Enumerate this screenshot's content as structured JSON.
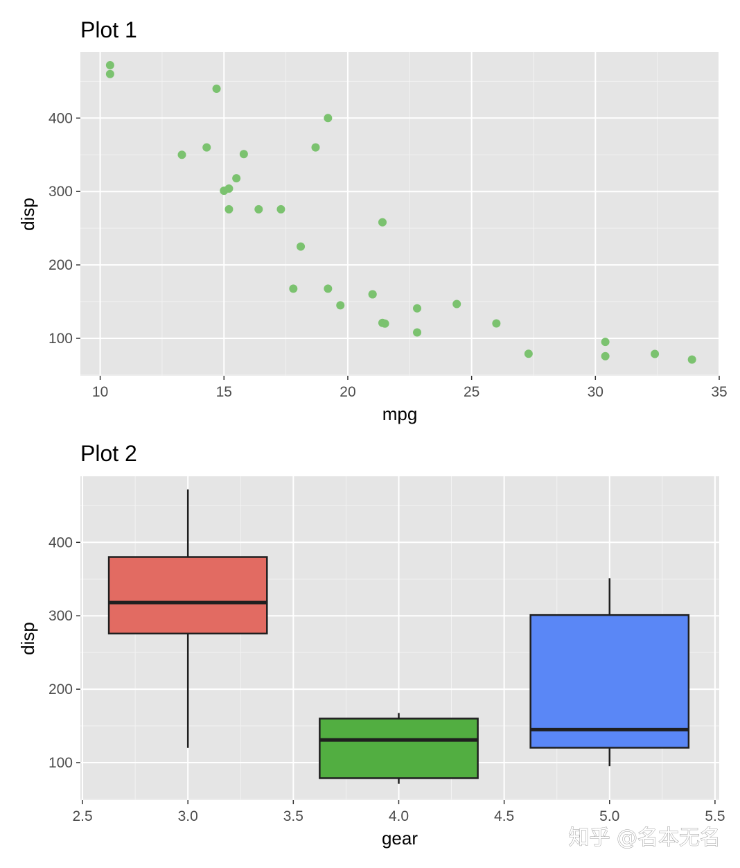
{
  "watermark": "知乎 @名本无名",
  "chart_data": [
    {
      "type": "scatter",
      "title": "Plot 1",
      "xlabel": "mpg",
      "ylabel": "disp",
      "xlim": [
        9.2,
        35
      ],
      "ylim": [
        49,
        490
      ],
      "x_ticks": [
        10,
        15,
        20,
        25,
        30,
        35
      ],
      "x_tick_labels": [
        "10",
        "15",
        "20",
        "25",
        "30",
        "35"
      ],
      "y_ticks": [
        100,
        200,
        300,
        400
      ],
      "y_tick_labels": [
        "100",
        "200",
        "300",
        "400"
      ],
      "grid": true,
      "point_color": "#7bc26f",
      "points": [
        {
          "x": 21.0,
          "y": 160
        },
        {
          "x": 21.0,
          "y": 160
        },
        {
          "x": 22.8,
          "y": 108
        },
        {
          "x": 21.4,
          "y": 258
        },
        {
          "x": 18.7,
          "y": 360
        },
        {
          "x": 18.1,
          "y": 225
        },
        {
          "x": 14.3,
          "y": 360
        },
        {
          "x": 24.4,
          "y": 146.7
        },
        {
          "x": 22.8,
          "y": 140.8
        },
        {
          "x": 19.2,
          "y": 167.6
        },
        {
          "x": 17.8,
          "y": 167.6
        },
        {
          "x": 16.4,
          "y": 275.8
        },
        {
          "x": 17.3,
          "y": 275.8
        },
        {
          "x": 15.2,
          "y": 275.8
        },
        {
          "x": 10.4,
          "y": 472
        },
        {
          "x": 10.4,
          "y": 460
        },
        {
          "x": 14.7,
          "y": 440
        },
        {
          "x": 32.4,
          "y": 78.7
        },
        {
          "x": 30.4,
          "y": 75.7
        },
        {
          "x": 33.9,
          "y": 71.1
        },
        {
          "x": 21.5,
          "y": 120.1
        },
        {
          "x": 15.5,
          "y": 318
        },
        {
          "x": 15.2,
          "y": 304
        },
        {
          "x": 13.3,
          "y": 350
        },
        {
          "x": 19.2,
          "y": 400
        },
        {
          "x": 27.3,
          "y": 79
        },
        {
          "x": 26.0,
          "y": 120.3
        },
        {
          "x": 30.4,
          "y": 95.1
        },
        {
          "x": 15.8,
          "y": 351
        },
        {
          "x": 19.7,
          "y": 145
        },
        {
          "x": 15.0,
          "y": 301
        },
        {
          "x": 21.4,
          "y": 121
        }
      ]
    },
    {
      "type": "box",
      "title": "Plot 2",
      "xlabel": "gear",
      "ylabel": "disp",
      "xlim": [
        2.49,
        5.52
      ],
      "ylim": [
        49,
        490
      ],
      "x_ticks": [
        2.5,
        3.0,
        3.5,
        4.0,
        4.5,
        5.0,
        5.5
      ],
      "x_tick_labels": [
        "2.5",
        "3.0",
        "3.5",
        "4.0",
        "4.5",
        "5.0",
        "5.5"
      ],
      "y_ticks": [
        100,
        200,
        300,
        400
      ],
      "y_tick_labels": [
        "100",
        "200",
        "300",
        "400"
      ],
      "grid": true,
      "box_width": 0.75,
      "boxes": [
        {
          "gear": 3,
          "min": 120.1,
          "q1": 275.8,
          "median": 318,
          "q3": 380,
          "max": 472,
          "color": "#e26b62"
        },
        {
          "gear": 4,
          "min": 71.1,
          "q1": 78.8,
          "median": 130.9,
          "q3": 160,
          "max": 167.6,
          "color": "#52ae41"
        },
        {
          "gear": 5,
          "min": 95.1,
          "q1": 120.3,
          "median": 145,
          "q3": 301,
          "max": 351,
          "color": "#5a87f6"
        }
      ]
    }
  ]
}
